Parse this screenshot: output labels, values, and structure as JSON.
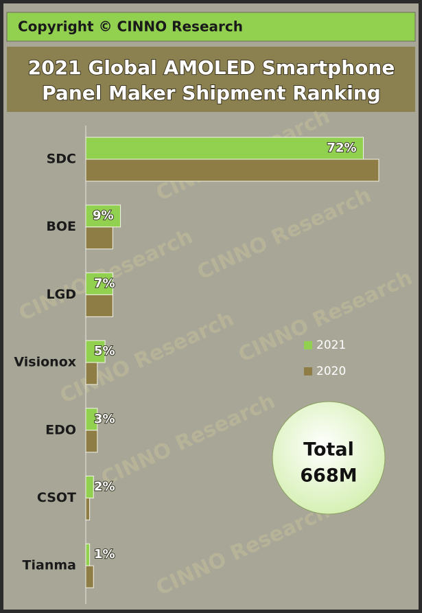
{
  "header": {
    "copyright": "Copyright © CINNO Research"
  },
  "chart_data": {
    "type": "hbar",
    "title": "2021 Global AMOLED Smartphone",
    "subtitle": "Panel Maker Shipment Ranking",
    "watermark": "CINNO Research",
    "categories": [
      "SDC",
      "BOE",
      "LGD",
      "Visionox",
      "EDO",
      "CSOT",
      "Tianma"
    ],
    "series": [
      {
        "name": "2021",
        "color": "#92d050",
        "values": [
          72,
          9,
          7,
          5,
          3,
          2,
          1
        ],
        "value_labels": [
          "72%",
          "9%",
          "7%",
          "5%",
          "3%",
          "2%",
          "1%"
        ]
      },
      {
        "name": "2020",
        "color": "#8e7d45",
        "values": [
          76,
          7,
          7,
          3,
          3,
          1,
          2
        ]
      }
    ],
    "legend": "right",
    "total": {
      "label": "Total",
      "value": "668M"
    }
  }
}
